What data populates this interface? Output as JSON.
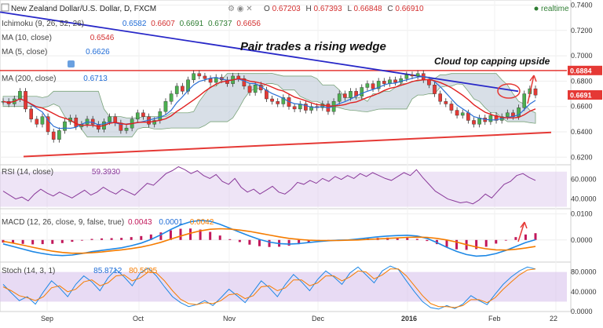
{
  "header": {
    "symbol_title": "New Zealand Dollar/U.S. Dollar, D, FXCM",
    "ohlc": {
      "o_label": "O",
      "o": "0.67203",
      "h_label": "H",
      "h": "0.67393",
      "l_label": "L",
      "l": "0.66848",
      "c_label": "C",
      "c": "0.66910"
    },
    "realtime_label": "realtime"
  },
  "indicators": {
    "ichimoku": {
      "label": "Ichimoku (9, 26, 52, 26)",
      "v1": "0.6582",
      "v2": "0.6607",
      "v3": "0.6691",
      "v4": "0.6737",
      "v5": "0.6656"
    },
    "ma10": {
      "label": "MA (10, close)",
      "value": "0.6546"
    },
    "ma5": {
      "label": "MA (5, close)",
      "value": "0.6626"
    },
    "ma200": {
      "label": "MA (200, close)",
      "value": "0.6713"
    },
    "rsi": {
      "label": "RSI (14, close)",
      "value": "59.3930"
    },
    "macd": {
      "label": "MACD (12, 26, close, 9, false, true)",
      "v1": "0.0043",
      "v2": "0.0001",
      "v3": "0.0042"
    },
    "stoch": {
      "label": "Stoch (14, 3, 1)",
      "v1": "85.8712",
      "v2": "80.5095"
    }
  },
  "annotations": {
    "wedge": "Pair trades a rising wedge",
    "cloud": "Cloud top capping upside"
  },
  "colors": {
    "candle_up": "#4caf50",
    "candle_down": "#e53935",
    "trend_blue": "#2828c8",
    "ma_red": "#e02020",
    "ma_blue": "#2a6fd6",
    "cloud_fill": "#b8c4d4",
    "rsi_line": "#8a3a9a",
    "macd_line": "#1e88e5",
    "signal_line": "#f57c00",
    "hist": "#c2185b",
    "stoch_fill": "#d9c3ec"
  },
  "chart_data": {
    "type": "line",
    "time_axis": [
      "Sep",
      "Oct",
      "Nov",
      "Dec",
      "2016",
      "Feb",
      "22"
    ],
    "price": {
      "ylim": [
        0.614,
        0.744
      ],
      "ticks": [
        "0.7400",
        "0.7200",
        "0.7000",
        "0.6800",
        "0.6600",
        "0.6400",
        "0.6200"
      ],
      "tick_values": [
        0.74,
        0.72,
        0.7,
        0.68,
        0.66,
        0.64,
        0.62
      ],
      "highlight_labels": [
        {
          "text": "0.6884",
          "value": 0.6884,
          "color": "#e53935"
        },
        {
          "text": "0.6691",
          "value": 0.6691,
          "color": "#e53935"
        }
      ],
      "closes": [
        0.664,
        0.662,
        0.666,
        0.672,
        0.658,
        0.65,
        0.646,
        0.652,
        0.64,
        0.634,
        0.641,
        0.648,
        0.651,
        0.644,
        0.646,
        0.65,
        0.646,
        0.642,
        0.648,
        0.652,
        0.647,
        0.641,
        0.643,
        0.65,
        0.655,
        0.652,
        0.646,
        0.649,
        0.656,
        0.664,
        0.67,
        0.676,
        0.672,
        0.681,
        0.686,
        0.684,
        0.682,
        0.679,
        0.683,
        0.681,
        0.678,
        0.684,
        0.682,
        0.676,
        0.671,
        0.677,
        0.673,
        0.666,
        0.664,
        0.662,
        0.667,
        0.66,
        0.658,
        0.662,
        0.657,
        0.66,
        0.659,
        0.662,
        0.656,
        0.664,
        0.67,
        0.667,
        0.672,
        0.668,
        0.675,
        0.678,
        0.674,
        0.68,
        0.678,
        0.681,
        0.679,
        0.682,
        0.685,
        0.684,
        0.686,
        0.681,
        0.677,
        0.67,
        0.664,
        0.662,
        0.657,
        0.653,
        0.655,
        0.649,
        0.646,
        0.651,
        0.648,
        0.653,
        0.649,
        0.652,
        0.655,
        0.652,
        0.659,
        0.67,
        0.674,
        0.669
      ],
      "resistance_line": 0.6884,
      "support_line": {
        "from": 0.6205,
        "to": 0.6395
      },
      "descending_line": {
        "from": 0.7345,
        "to": 0.672
      }
    },
    "rsi": {
      "ylim": [
        30,
        75
      ],
      "ticks": [
        "60.0000",
        "40.0000"
      ],
      "tick_values": [
        60,
        40
      ],
      "band": [
        32,
        68
      ],
      "values": [
        48,
        44,
        40,
        42,
        38,
        45,
        50,
        46,
        43,
        47,
        44,
        41,
        45,
        49,
        44,
        47,
        52,
        48,
        45,
        50,
        47,
        44,
        50,
        56,
        54,
        60,
        66,
        69,
        73,
        70,
        66,
        69,
        64,
        61,
        65,
        58,
        55,
        61,
        52,
        47,
        50,
        45,
        49,
        53,
        47,
        45,
        50,
        57,
        55,
        59,
        56,
        61,
        58,
        63,
        60,
        64,
        61,
        66,
        63,
        67,
        64,
        61,
        59,
        63,
        67,
        64,
        70,
        62,
        55,
        48,
        44,
        40,
        38,
        36,
        37,
        35,
        39,
        45,
        41,
        48,
        55,
        58,
        64,
        66,
        62,
        59
      ]
    },
    "macd": {
      "ylim": [
        -0.0085,
        0.012
      ],
      "ticks": [
        "0.0100",
        "0.0000"
      ],
      "tick_values": [
        0.01,
        0.0
      ],
      "macd": [
        -0.0015,
        -0.0025,
        -0.0035,
        -0.0045,
        -0.0052,
        -0.0058,
        -0.006,
        -0.0058,
        -0.0052,
        -0.0045,
        -0.004,
        -0.0035,
        -0.003,
        -0.0022,
        -0.0012,
        0.0002,
        0.002,
        0.004,
        0.0058,
        0.007,
        0.0075,
        0.0072,
        0.006,
        0.0045,
        0.003,
        0.0015,
        0.0002,
        -0.0008,
        -0.0014,
        -0.0016,
        -0.0014,
        -0.001,
        -0.0006,
        -0.0003,
        -0.0001,
        0.0,
        0.0004,
        0.0008,
        0.0012,
        0.0015,
        0.0017,
        0.0018,
        0.0015,
        0.0006,
        -0.001,
        -0.0028,
        -0.0044,
        -0.0056,
        -0.0062,
        -0.006,
        -0.0052,
        -0.004,
        -0.0025,
        -0.001,
        0.0001
      ],
      "signal": [
        -0.0005,
        -0.0012,
        -0.002,
        -0.0028,
        -0.0036,
        -0.0043,
        -0.0048,
        -0.0051,
        -0.0051,
        -0.0049,
        -0.0046,
        -0.0042,
        -0.0038,
        -0.0033,
        -0.0027,
        -0.0019,
        -0.0009,
        0.0003,
        0.0015,
        0.0026,
        0.0035,
        0.0041,
        0.0043,
        0.0042,
        0.0038,
        0.0033,
        0.0026,
        0.0019,
        0.0012,
        0.0006,
        0.0002,
        -0.0001,
        -0.0002,
        -0.0002,
        -0.0002,
        -0.0001,
        0.0,
        0.0002,
        0.0004,
        0.0006,
        0.0008,
        0.001,
        0.0011,
        0.001,
        0.0006,
        0.0,
        -0.0008,
        -0.0018,
        -0.0027,
        -0.0034,
        -0.0038,
        -0.0039,
        -0.0036,
        -0.0031,
        -0.0025
      ]
    },
    "stoch": {
      "ylim": [
        0,
        100
      ],
      "ticks": [
        "80.0000",
        "40.0000",
        "0.0000"
      ],
      "tick_values": [
        80,
        40,
        0
      ],
      "band": [
        20,
        80
      ],
      "k": [
        55,
        38,
        22,
        30,
        15,
        40,
        62,
        48,
        30,
        55,
        72,
        60,
        42,
        68,
        85,
        70,
        52,
        78,
        88,
        72,
        50,
        30,
        18,
        10,
        14,
        22,
        12,
        28,
        45,
        32,
        18,
        40,
        62,
        48,
        30,
        55,
        75,
        60,
        42,
        65,
        82,
        70,
        55,
        78,
        90,
        74,
        58,
        82,
        92,
        85,
        62,
        40,
        20,
        8,
        5,
        12,
        6,
        15,
        32,
        22,
        14,
        35,
        55,
        70,
        82,
        90,
        86
      ],
      "d": [
        50,
        42,
        32,
        28,
        22,
        30,
        48,
        52,
        40,
        45,
        60,
        64,
        52,
        58,
        72,
        74,
        62,
        68,
        80,
        78,
        62,
        42,
        25,
        16,
        14,
        18,
        16,
        22,
        34,
        36,
        26,
        32,
        50,
        52,
        42,
        48,
        64,
        64,
        52,
        58,
        72,
        72,
        62,
        70,
        82,
        80,
        66,
        74,
        86,
        86,
        72,
        52,
        32,
        16,
        10,
        10,
        8,
        12,
        24,
        24,
        18,
        28,
        45,
        60,
        74,
        84,
        86
      ]
    }
  }
}
